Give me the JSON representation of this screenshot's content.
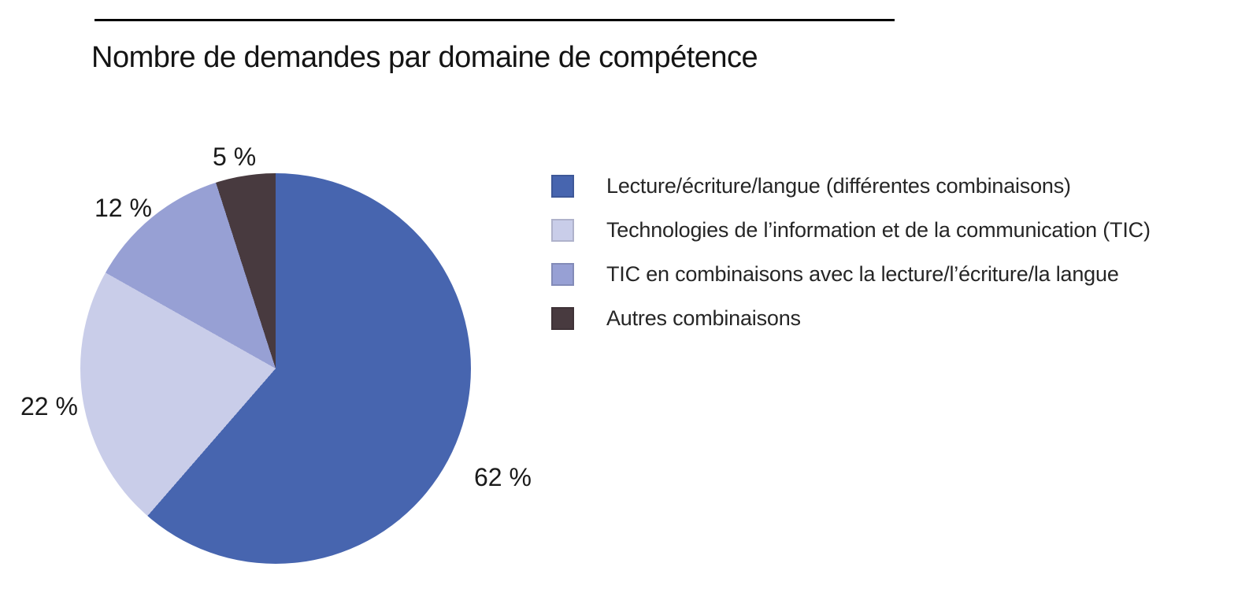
{
  "title": "Nombre de demandes par domaine de compétence",
  "chart_data": {
    "type": "pie",
    "title": "Nombre de demandes par domaine de compétence",
    "labels": [
      "Lecture/écriture/langue (différentes combinaisons)",
      "Technologies de l’information et de la communication (TIC)",
      "TIC en combinaisons avec la lecture/l’écriture/la langue",
      "Autres combinaisons"
    ],
    "values": [
      62,
      22,
      12,
      5
    ],
    "value_labels": [
      "62 %",
      "22 %",
      "12 %",
      "5 %"
    ],
    "colors": [
      "#4765af",
      "#c9cde9",
      "#97a0d4",
      "#483a3f"
    ],
    "start_angle_deg": 0,
    "direction": "clockwise",
    "legend_position": "right",
    "accent_rule_color": "#000000"
  }
}
